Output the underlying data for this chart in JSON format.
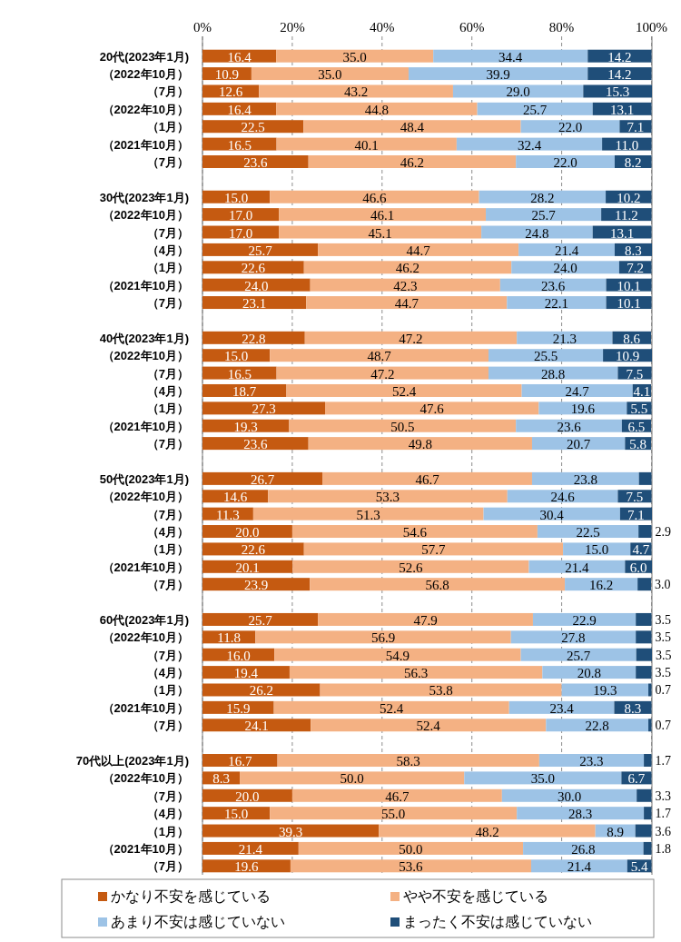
{
  "chart_data": {
    "type": "bar",
    "orientation": "horizontal",
    "stacked": true,
    "grid": "x",
    "legend": "bottom",
    "xlim": [
      0,
      100.1
    ],
    "xticks": [
      {
        "value": 0,
        "label": "0%"
      },
      {
        "value": 20,
        "label": "20%"
      },
      {
        "value": 40,
        "label": "40%"
      },
      {
        "value": 60,
        "label": "60%"
      },
      {
        "value": 80,
        "label": "80%"
      },
      {
        "value": 100,
        "label": "100%"
      }
    ],
    "categories": [
      "20代(2023年1月)",
      "（2022年10月）",
      "（7月）",
      "（2022年10月）",
      "（1月）",
      "（2021年10月）",
      "（7月）",
      null,
      "30代(2023年1月)",
      "（2022年10月）",
      "（7月）",
      "（4月）",
      "（1月）",
      "（2021年10月）",
      "（7月）",
      null,
      "40代(2023年1月)",
      "（2022年10月）",
      "（7月）",
      "（4月）",
      "（1月）",
      "（2021年10月）",
      "（7月）",
      null,
      "50代(2023年1月)",
      "（2022年10月）",
      "（7月）",
      "（4月）",
      "（1月）",
      "（2021年10月）",
      "（7月）",
      null,
      "60代(2023年1月)",
      "（2022年10月）",
      "（7月）",
      "（4月）",
      "（1月）",
      "（2021年10月）",
      "（7月）",
      null,
      "70代以上(2023年1月)",
      "（2022年10月）",
      "（7月）",
      "（4月）",
      "（1月）",
      "（2021年10月）",
      "（7月）"
    ],
    "series": [
      {
        "name": "かなり不安を感じている",
        "color": "#c55a11",
        "values": [
          16.4,
          10.9,
          12.6,
          16.4,
          22.5,
          16.5,
          23.6,
          null,
          15.0,
          17.0,
          17.0,
          25.7,
          22.6,
          24.0,
          23.1,
          null,
          22.8,
          15.0,
          16.5,
          18.7,
          27.3,
          19.3,
          23.6,
          null,
          26.7,
          14.6,
          11.3,
          20.0,
          22.6,
          20.1,
          23.9,
          null,
          25.7,
          11.8,
          16.0,
          19.4,
          26.2,
          15.9,
          24.1,
          null,
          16.7,
          8.3,
          20.0,
          15.0,
          39.3,
          21.4,
          19.6
        ],
        "value_labels": [
          "16.4",
          "10.9",
          "12.6",
          "16.4",
          "22.5",
          "16.5",
          "23.6",
          null,
          "15.0",
          "17.0",
          "17.0",
          "25.7",
          "22.6",
          "24.0",
          "23.1",
          null,
          "22.8",
          "15.0",
          "16.5",
          "18.7",
          "27.3",
          "19.3",
          "23.6",
          null,
          "26.7",
          "14.6",
          "11.3",
          "20.0",
          "22.6",
          "20.1",
          "23.9",
          null,
          "25.7",
          "11.8",
          "16.0",
          "19.4",
          "26.2",
          "15.9",
          "24.1",
          null,
          "16.7",
          "8.3",
          "20.0",
          "15.0",
          "39.3",
          "21.4",
          "19.6"
        ]
      },
      {
        "name": "やや不安を感じている",
        "color": "#f4b183",
        "values": [
          35.0,
          35.0,
          43.2,
          44.8,
          48.4,
          40.1,
          46.2,
          null,
          46.6,
          46.1,
          45.1,
          44.7,
          46.2,
          42.3,
          44.7,
          null,
          47.2,
          48.7,
          47.2,
          52.4,
          47.6,
          50.5,
          49.8,
          null,
          46.7,
          53.3,
          51.3,
          54.6,
          57.7,
          52.6,
          56.8,
          null,
          47.9,
          56.9,
          54.9,
          56.3,
          53.8,
          52.4,
          52.4,
          null,
          58.3,
          50.0,
          46.7,
          55.0,
          48.2,
          50.0,
          53.6
        ],
        "value_labels": [
          "35.0",
          "35.0",
          "43.2",
          "44.8",
          "48.4",
          "40.1",
          "46.2",
          null,
          "46.6",
          "46.1",
          "45.1",
          "44.7",
          "46.2",
          "42.3",
          "44.7",
          null,
          "47.2",
          "48.7",
          "47.2",
          "52.4",
          "47.6",
          "50.5",
          "49.8",
          null,
          "46.7",
          "53.3",
          "51.3",
          "54.6",
          "57.7",
          "52.6",
          "56.8",
          null,
          "47.9",
          "56.9",
          "54.9",
          "56.3",
          "53.8",
          "52.4",
          "52.4",
          null,
          "58.3",
          "50.0",
          "46.7",
          "55.0",
          "48.2",
          "50.0",
          "53.6"
        ]
      },
      {
        "name": "あまり不安は感じていない",
        "color": "#9dc3e6",
        "values": [
          34.4,
          39.9,
          29.0,
          25.7,
          22.0,
          32.4,
          22.0,
          null,
          28.2,
          25.7,
          24.8,
          21.4,
          24.0,
          23.6,
          22.1,
          null,
          21.3,
          25.5,
          28.8,
          24.7,
          19.6,
          23.6,
          20.7,
          null,
          23.8,
          24.6,
          30.4,
          22.5,
          15.0,
          21.4,
          16.2,
          null,
          22.9,
          27.8,
          25.7,
          20.8,
          19.3,
          23.4,
          22.8,
          null,
          23.3,
          35.0,
          30.0,
          28.3,
          8.9,
          26.8,
          21.4
        ],
        "value_labels": [
          "34.4",
          "39.9",
          "29.0",
          "25.7",
          "22.0",
          "32.4",
          "22.0",
          null,
          "28.2",
          "25.7",
          "24.8",
          "21.4",
          "24.0",
          "23.6",
          "22.1",
          null,
          "21.3",
          "25.5",
          "28.8",
          "24.7",
          "19.6",
          "23.6",
          "20.7",
          null,
          "23.8",
          "24.6",
          "30.4",
          "22.5",
          "15.0",
          "21.4",
          "16.2",
          null,
          "22.9",
          "27.8",
          "25.7",
          "20.8",
          "19.3",
          "23.4",
          "22.8",
          null,
          "23.3",
          "35.0",
          "30.0",
          "28.3",
          "8.9",
          "26.8",
          "21.4"
        ]
      },
      {
        "name": "まったく不安は感じていない",
        "color": "#1f4e79",
        "values": [
          14.2,
          14.2,
          15.3,
          13.1,
          7.1,
          11.0,
          8.2,
          null,
          10.2,
          11.2,
          13.1,
          8.3,
          7.2,
          10.1,
          10.1,
          null,
          8.6,
          10.9,
          7.5,
          4.1,
          5.5,
          6.5,
          5.8,
          null,
          2.8,
          7.5,
          7.1,
          2.9,
          4.7,
          6.0,
          3.0,
          null,
          3.5,
          3.5,
          3.5,
          3.5,
          0.7,
          8.3,
          0.7,
          null,
          1.7,
          6.7,
          3.3,
          1.7,
          3.6,
          1.8,
          5.4
        ],
        "value_labels": [
          "14.2",
          "14.2",
          "15.3",
          "13.1",
          "7.1",
          "11.0",
          "8.2",
          null,
          "10.2",
          "11.2",
          "13.1",
          "8.3",
          "7.2",
          "10.1",
          "10.1",
          null,
          "8.6",
          "10.9",
          "7.5",
          "4.1",
          "5.5",
          "6.5",
          "5.8",
          null,
          null,
          "7.5",
          "7.1",
          "2.9",
          "4.7",
          "6.0",
          "3.0",
          null,
          "3.5",
          "3.5",
          "3.5",
          "3.5",
          "0.7",
          "8.3",
          "0.7",
          null,
          "1.7",
          "6.7",
          "3.3",
          "1.7",
          "3.6",
          "1.8",
          "5.4"
        ]
      }
    ]
  }
}
